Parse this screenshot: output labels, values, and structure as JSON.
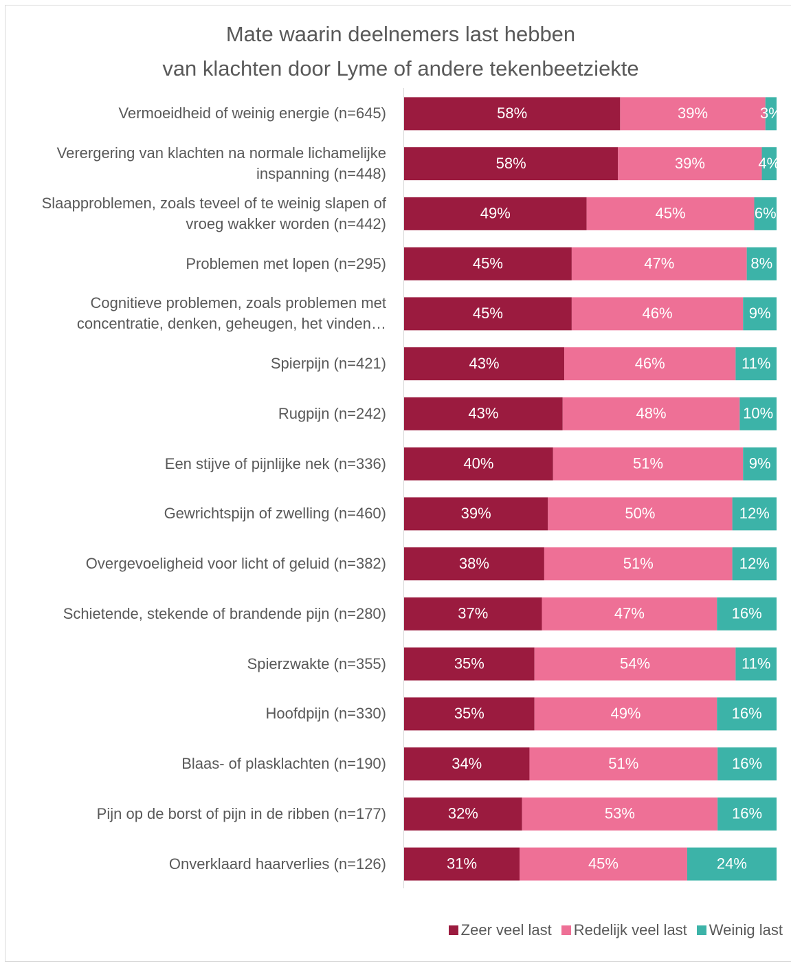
{
  "chart_data": {
    "type": "stacked_bar_100",
    "title": [
      "Mate waarin deelnemers last hebben",
      "van klachten door Lyme of andere tekenbeetziekte"
    ],
    "categories": [
      "Vermoeidheid of weinig energie (n=645)",
      "Verergering van klachten na normale lichamelijke inspanning (n=448)",
      "Slaapproblemen, zoals teveel of te weinig slapen of vroeg wakker worden (n=442)",
      "Problemen met lopen (n=295)",
      "Cognitieve problemen, zoals problemen met concentratie, denken, geheugen, het vinden…",
      "Spierpijn (n=421)",
      "Rugpijn (n=242)",
      "Een stijve of pijnlijke nek (n=336)",
      "Gewrichtspijn of zwelling (n=460)",
      "Overgevoeligheid voor licht of geluid (n=382)",
      "Schietende, stekende of brandende pijn (n=280)",
      "Spierzwakte (n=355)",
      "Hoofdpijn (n=330)",
      "Blaas- of plasklachten (n=190)",
      "Pijn op de borst of pijn in de ribben (n=177)",
      "Onverklaard haarverlies (n=126)"
    ],
    "series": [
      {
        "name": "Zeer veel last",
        "color": "#9b1b3f",
        "values": [
          58,
          58,
          49,
          45,
          45,
          43,
          43,
          40,
          39,
          38,
          37,
          35,
          35,
          34,
          32,
          31
        ],
        "value_labels": [
          "58%",
          "58%",
          "49%",
          "45%",
          "45%",
          "43%",
          "43%",
          "40%",
          "39%",
          "38%",
          "37%",
          "35%",
          "35%",
          "34%",
          "32%",
          "31%"
        ]
      },
      {
        "name": "Redelijk veel last",
        "color": "#ee7096",
        "values": [
          39,
          39,
          45,
          47,
          46,
          46,
          48,
          51,
          50,
          51,
          47,
          54,
          49,
          51,
          53,
          45
        ],
        "value_labels": [
          "39%",
          "39%",
          "45%",
          "47%",
          "46%",
          "46%",
          "48%",
          "51%",
          "50%",
          "51%",
          "47%",
          "54%",
          "49%",
          "51%",
          "53%",
          "45%"
        ]
      },
      {
        "name": "Weinig last",
        "color": "#3cb3a8",
        "values": [
          3,
          4,
          6,
          8,
          9,
          11,
          10,
          9,
          12,
          12,
          16,
          11,
          16,
          16,
          16,
          24
        ],
        "value_labels": [
          "3%",
          "4%",
          "6%",
          "8%",
          "9%",
          "11%",
          "10%",
          "9%",
          "12%",
          "12%",
          "16%",
          "11%",
          "16%",
          "16%",
          "16%",
          "24%"
        ]
      }
    ],
    "legend": "bottom-right"
  }
}
